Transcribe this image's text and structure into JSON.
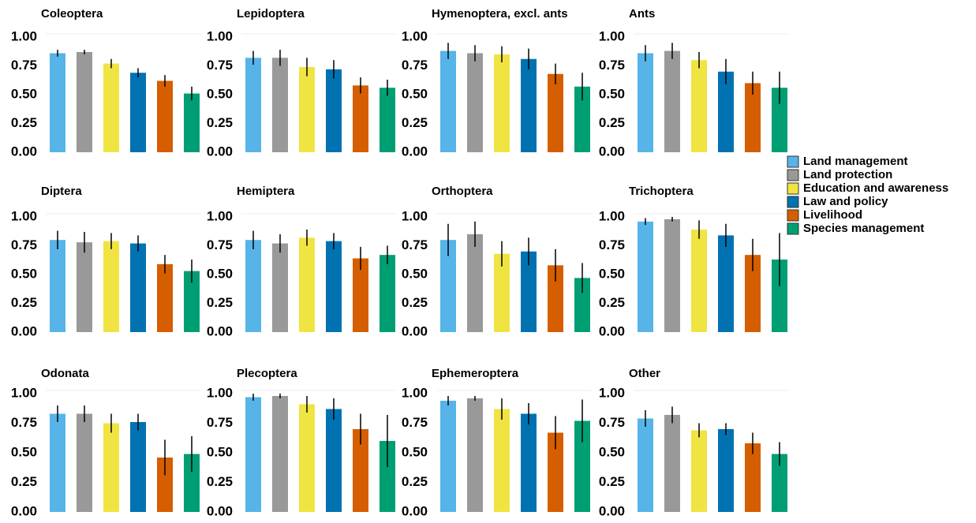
{
  "legend": {
    "items": [
      {
        "name": "Land management",
        "color": "#56B4E9"
      },
      {
        "name": "Land protection",
        "color": "#999999"
      },
      {
        "name": "Education and awareness",
        "color": "#F0E442"
      },
      {
        "name": "Law and policy",
        "color": "#0072B2"
      },
      {
        "name": "Livelihood",
        "color": "#D55E00"
      },
      {
        "name": "Species management",
        "color": "#009E73"
      }
    ]
  },
  "chart_data": [
    {
      "type": "bar",
      "title": "Coleoptera",
      "values": [
        0.86,
        0.87,
        0.77,
        0.69,
        0.62,
        0.51
      ],
      "errors": [
        0.03,
        0.02,
        0.04,
        0.04,
        0.05,
        0.06
      ],
      "ylim": [
        0,
        1
      ],
      "yticks": [
        {
          "value": 0,
          "label": "0.00"
        },
        {
          "value": 0.25,
          "label": "0.25"
        },
        {
          "value": 0.5,
          "label": "0.50"
        },
        {
          "value": 0.75,
          "label": "0.75"
        },
        {
          "value": 1,
          "label": "1.00"
        }
      ]
    },
    {
      "type": "bar",
      "title": "Lepidoptera",
      "values": [
        0.82,
        0.82,
        0.74,
        0.72,
        0.58,
        0.56
      ],
      "errors": [
        0.06,
        0.07,
        0.08,
        0.08,
        0.07,
        0.07
      ],
      "ylim": [
        0,
        1
      ],
      "yticks": [
        {
          "value": 0,
          "label": "0.00"
        },
        {
          "value": 0.25,
          "label": "0.25"
        },
        {
          "value": 0.5,
          "label": "0.50"
        },
        {
          "value": 0.75,
          "label": "0.75"
        },
        {
          "value": 1,
          "label": "1.00"
        }
      ]
    },
    {
      "type": "bar",
      "title": "Hymenoptera, excl. ants",
      "values": [
        0.88,
        0.86,
        0.85,
        0.81,
        0.68,
        0.57
      ],
      "errors": [
        0.07,
        0.07,
        0.07,
        0.09,
        0.09,
        0.12
      ],
      "ylim": [
        0,
        1
      ],
      "yticks": [
        {
          "value": 0,
          "label": "0.00"
        },
        {
          "value": 0.25,
          "label": "0.25"
        },
        {
          "value": 0.5,
          "label": "0.50"
        },
        {
          "value": 0.75,
          "label": "0.75"
        },
        {
          "value": 1,
          "label": "1.00"
        }
      ]
    },
    {
      "type": "bar",
      "title": "Ants",
      "values": [
        0.86,
        0.88,
        0.8,
        0.7,
        0.6,
        0.56
      ],
      "errors": [
        0.07,
        0.07,
        0.07,
        0.11,
        0.1,
        0.14
      ],
      "ylim": [
        0,
        1
      ],
      "yticks": [
        {
          "value": 0,
          "label": "0.00"
        },
        {
          "value": 0.25,
          "label": "0.25"
        },
        {
          "value": 0.5,
          "label": "0.50"
        },
        {
          "value": 0.75,
          "label": "0.75"
        },
        {
          "value": 1,
          "label": "1.00"
        }
      ]
    },
    {
      "type": "bar",
      "title": "Diptera",
      "values": [
        0.8,
        0.78,
        0.79,
        0.77,
        0.59,
        0.53
      ],
      "errors": [
        0.08,
        0.09,
        0.07,
        0.07,
        0.08,
        0.1
      ],
      "ylim": [
        0,
        1
      ],
      "yticks": [
        {
          "value": 0,
          "label": "0.00"
        },
        {
          "value": 0.25,
          "label": "0.25"
        },
        {
          "value": 0.5,
          "label": "0.50"
        },
        {
          "value": 0.75,
          "label": "0.75"
        },
        {
          "value": 1,
          "label": "1.00"
        }
      ]
    },
    {
      "type": "bar",
      "title": "Hemiptera",
      "values": [
        0.8,
        0.77,
        0.82,
        0.79,
        0.64,
        0.67
      ],
      "errors": [
        0.08,
        0.08,
        0.07,
        0.07,
        0.1,
        0.08
      ],
      "ylim": [
        0,
        1
      ],
      "yticks": [
        {
          "value": 0,
          "label": "0.00"
        },
        {
          "value": 0.25,
          "label": "0.25"
        },
        {
          "value": 0.5,
          "label": "0.50"
        },
        {
          "value": 0.75,
          "label": "0.75"
        },
        {
          "value": 1,
          "label": "1.00"
        }
      ]
    },
    {
      "type": "bar",
      "title": "Orthoptera",
      "values": [
        0.8,
        0.85,
        0.68,
        0.7,
        0.58,
        0.47
      ],
      "errors": [
        0.14,
        0.11,
        0.11,
        0.12,
        0.14,
        0.13
      ],
      "ylim": [
        0,
        1
      ],
      "yticks": [
        {
          "value": 0,
          "label": "0.00"
        },
        {
          "value": 0.25,
          "label": "0.25"
        },
        {
          "value": 0.5,
          "label": "0.50"
        },
        {
          "value": 0.75,
          "label": "0.75"
        },
        {
          "value": 1,
          "label": "1.00"
        }
      ]
    },
    {
      "type": "bar",
      "title": "Trichoptera",
      "values": [
        0.96,
        0.98,
        0.89,
        0.84,
        0.67,
        0.63
      ],
      "errors": [
        0.03,
        0.02,
        0.08,
        0.1,
        0.14,
        0.23
      ],
      "ylim": [
        0,
        1
      ],
      "yticks": [
        {
          "value": 0,
          "label": "0.00"
        },
        {
          "value": 0.25,
          "label": "0.25"
        },
        {
          "value": 0.5,
          "label": "0.50"
        },
        {
          "value": 0.75,
          "label": "0.75"
        },
        {
          "value": 1,
          "label": "1.00"
        }
      ]
    },
    {
      "type": "bar",
      "title": "Odonata",
      "values": [
        0.83,
        0.83,
        0.75,
        0.76,
        0.46,
        0.49
      ],
      "errors": [
        0.07,
        0.07,
        0.08,
        0.07,
        0.15,
        0.15
      ],
      "ylim": [
        0,
        1
      ],
      "yticks": [
        {
          "value": 0,
          "label": "0.00"
        },
        {
          "value": 0.25,
          "label": "0.25"
        },
        {
          "value": 0.5,
          "label": "0.50"
        },
        {
          "value": 0.75,
          "label": "0.75"
        },
        {
          "value": 1,
          "label": "1.00"
        }
      ]
    },
    {
      "type": "bar",
      "title": "Plecoptera",
      "values": [
        0.97,
        0.98,
        0.91,
        0.87,
        0.7,
        0.6
      ],
      "errors": [
        0.03,
        0.02,
        0.07,
        0.09,
        0.13,
        0.22
      ],
      "ylim": [
        0,
        1
      ],
      "yticks": [
        {
          "value": 0,
          "label": "0.00"
        },
        {
          "value": 0.25,
          "label": "0.25"
        },
        {
          "value": 0.5,
          "label": "0.50"
        },
        {
          "value": 0.75,
          "label": "0.75"
        },
        {
          "value": 1,
          "label": "1.00"
        }
      ]
    },
    {
      "type": "bar",
      "title": "Ephemeroptera",
      "values": [
        0.94,
        0.96,
        0.87,
        0.83,
        0.67,
        0.77
      ],
      "errors": [
        0.04,
        0.02,
        0.09,
        0.09,
        0.14,
        0.18
      ],
      "ylim": [
        0,
        1
      ],
      "yticks": [
        {
          "value": 0,
          "label": "0.00"
        },
        {
          "value": 0.25,
          "label": "0.25"
        },
        {
          "value": 0.5,
          "label": "0.50"
        },
        {
          "value": 0.75,
          "label": "0.75"
        },
        {
          "value": 1,
          "label": "1.00"
        }
      ]
    },
    {
      "type": "bar",
      "title": "Other",
      "values": [
        0.79,
        0.82,
        0.69,
        0.7,
        0.58,
        0.49
      ],
      "errors": [
        0.07,
        0.07,
        0.06,
        0.05,
        0.09,
        0.1
      ],
      "ylim": [
        0,
        1
      ],
      "yticks": [
        {
          "value": 0,
          "label": "0.00"
        },
        {
          "value": 0.25,
          "label": "0.25"
        },
        {
          "value": 0.5,
          "label": "0.50"
        },
        {
          "value": 0.75,
          "label": "0.75"
        },
        {
          "value": 1,
          "label": "1.00"
        }
      ]
    }
  ]
}
